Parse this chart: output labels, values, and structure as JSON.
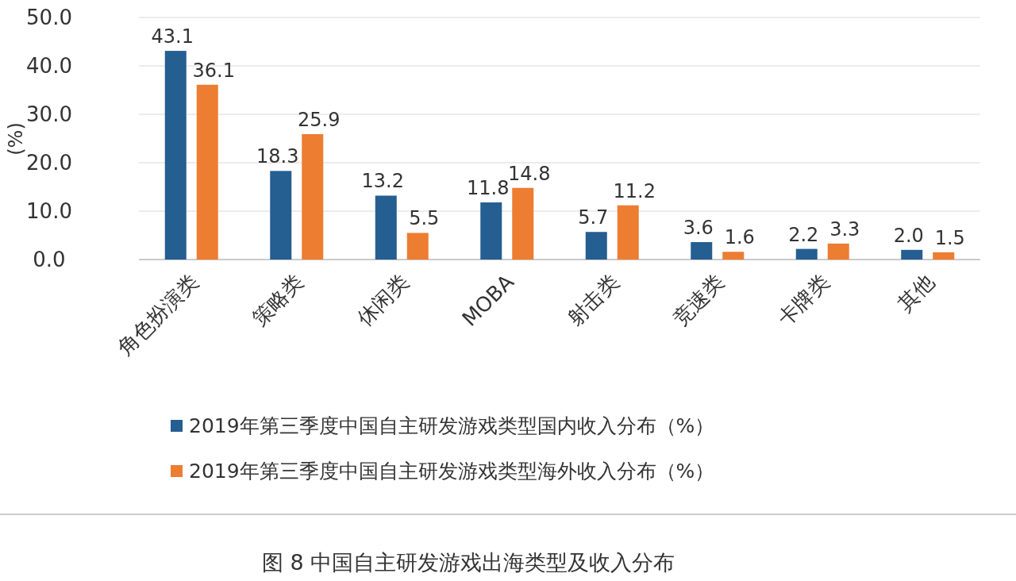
{
  "chart_data": {
    "type": "bar",
    "ylabel": "(%)",
    "categories": [
      "角色扮演类",
      "策略类",
      "休闲类",
      "MOBA",
      "射击类",
      "竞速类",
      "卡牌类",
      "其他"
    ],
    "series": [
      {
        "name": "2019年第三季度中国自主研发游戏类型国内收入分布（%）",
        "color": "#255e91",
        "values": [
          43.1,
          18.3,
          13.2,
          11.8,
          5.7,
          3.6,
          2.2,
          2.0
        ],
        "value_labels": [
          "43.1",
          "18.3",
          "13.2",
          "11.8",
          "5.7",
          "3.6",
          "2.2",
          "2.0"
        ]
      },
      {
        "name": "2019年第三季度中国自主研发游戏类型海外收入分布（%）",
        "color": "#ed7d31",
        "values": [
          36.1,
          25.9,
          5.5,
          14.8,
          11.2,
          1.6,
          3.3,
          1.5
        ],
        "value_labels": [
          "36.1",
          "25.9",
          "5.5",
          "14.8",
          "11.2",
          "1.6",
          "3.3",
          "1.5"
        ]
      }
    ],
    "ylim": [
      0,
      50
    ],
    "yticks": [
      {
        "value": 0,
        "label": "0.0"
      },
      {
        "value": 10,
        "label": "10.0"
      },
      {
        "value": 20,
        "label": "20.0"
      },
      {
        "value": 30,
        "label": "30.0"
      },
      {
        "value": 40,
        "label": "40.0"
      },
      {
        "value": 50,
        "label": "50.0"
      }
    ],
    "grid": "y",
    "legend": "bottom",
    "annotations": [
      "图 8 中国自主研发游戏出海类型及收入分布"
    ]
  }
}
